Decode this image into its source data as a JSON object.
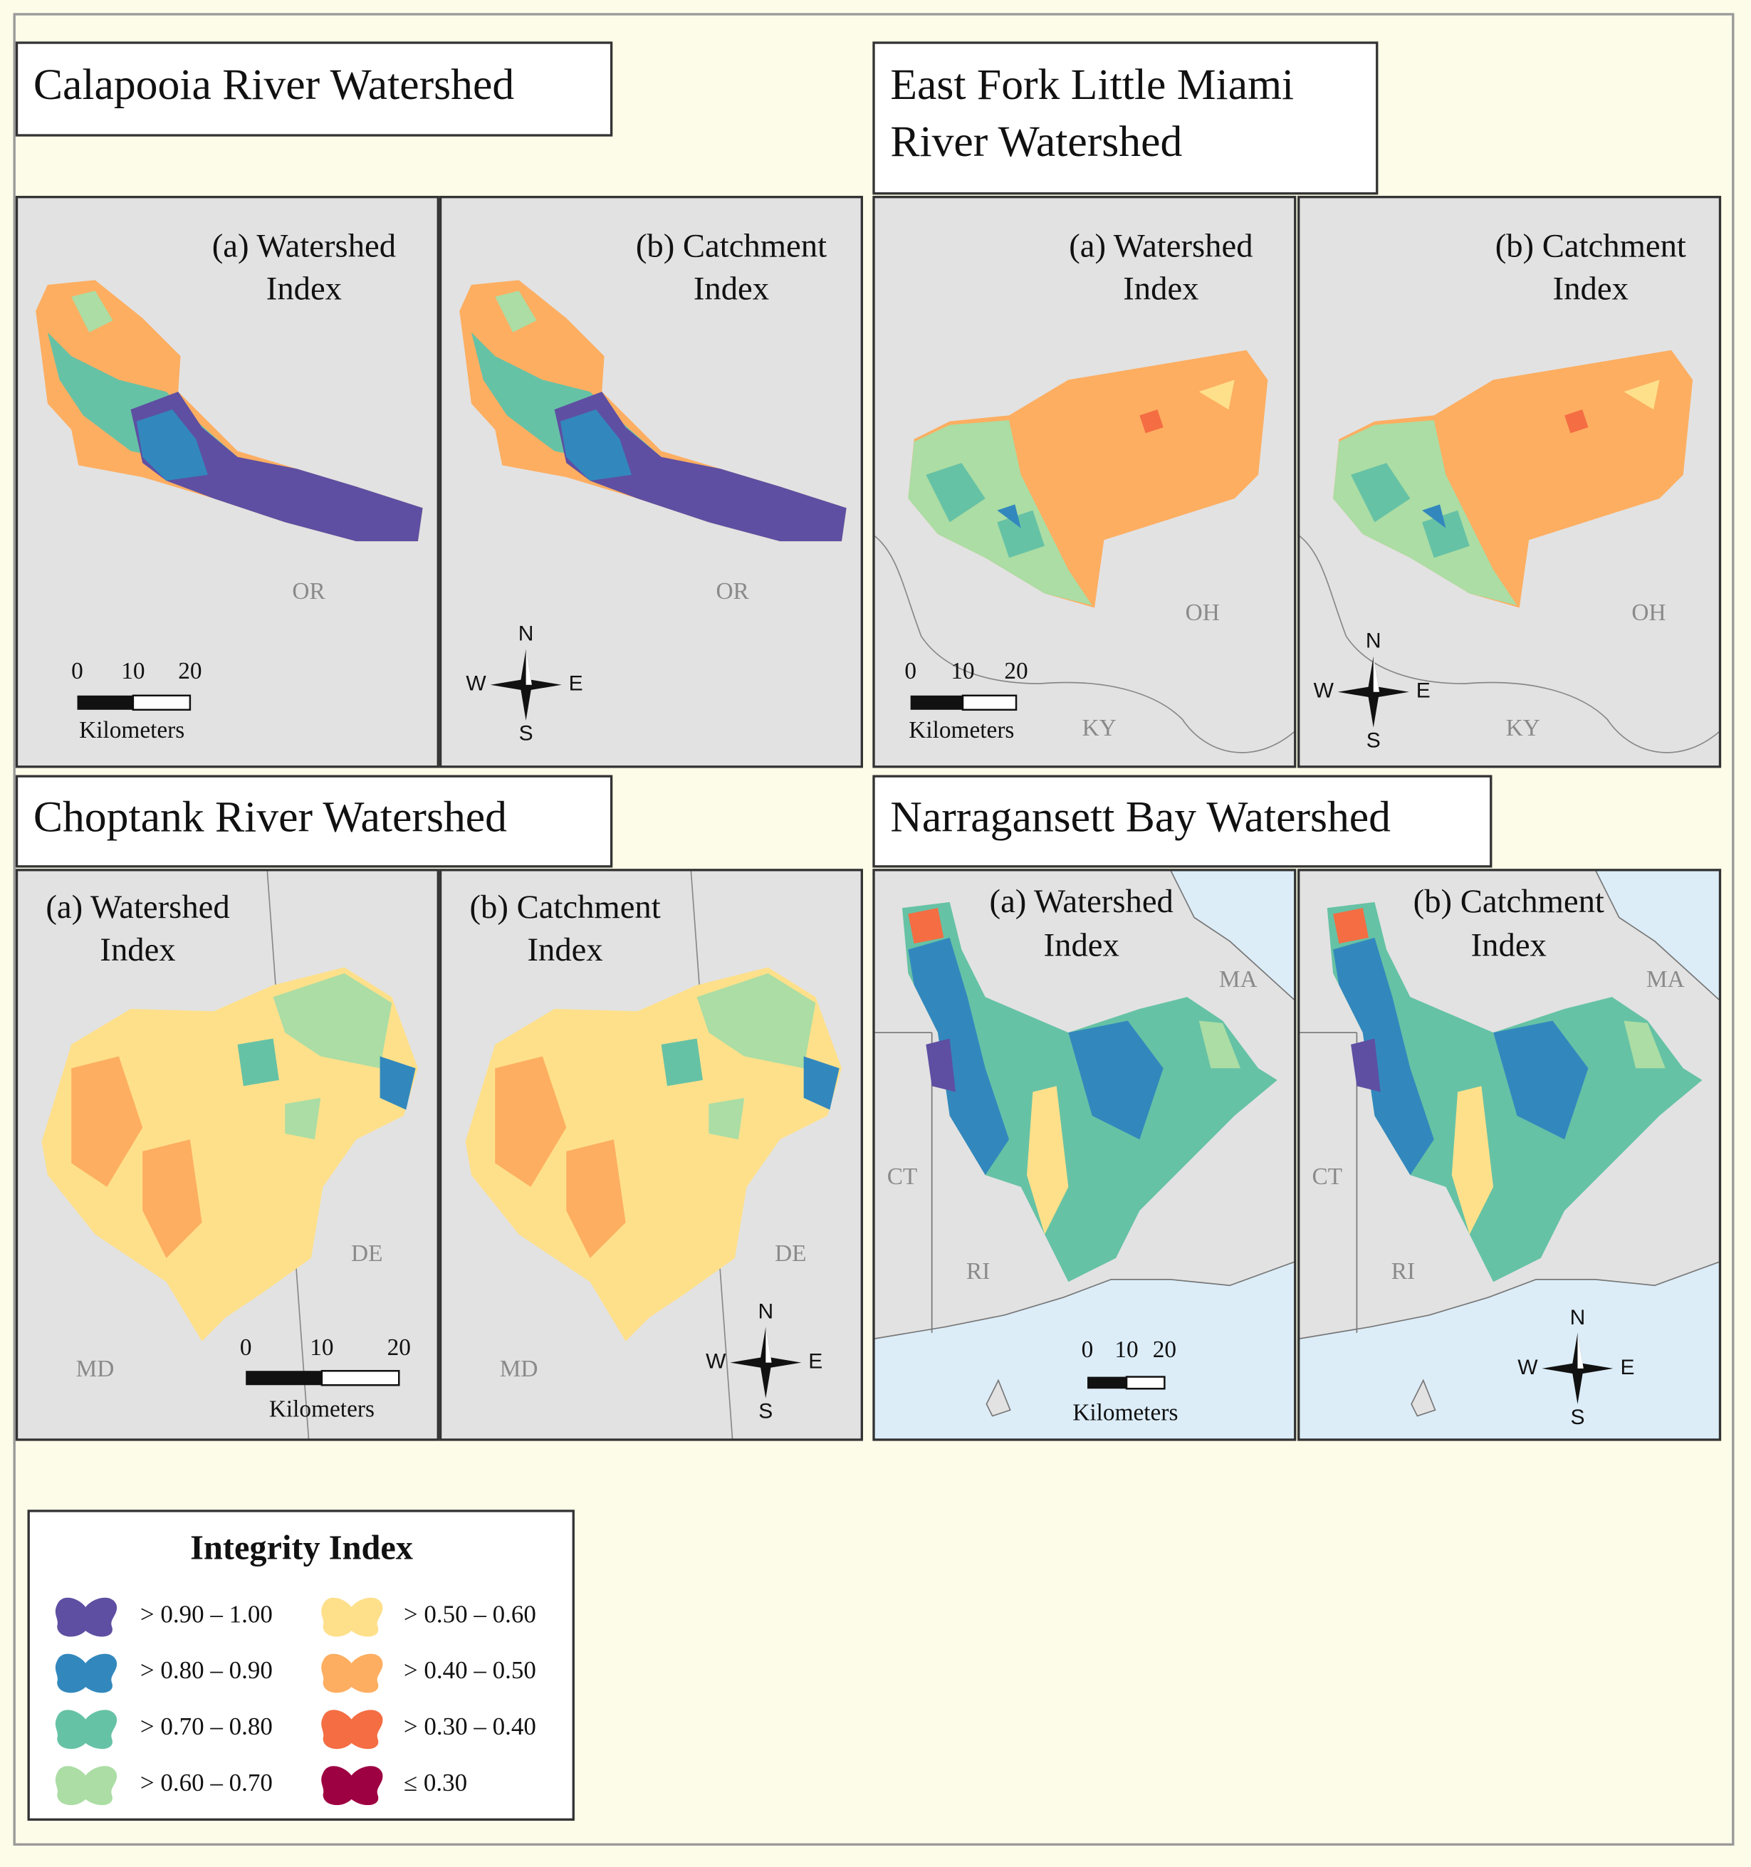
{
  "maps": [
    {
      "title": [
        "Calapooia River Watershed"
      ],
      "panels": [
        {
          "label": [
            "(a) Watershed",
            "Index"
          ],
          "states": [
            "OR"
          ]
        },
        {
          "label": [
            "(b) Catchment",
            "Index"
          ],
          "states": [
            "OR"
          ]
        }
      ],
      "scale_bar": {
        "ticks": [
          0,
          10,
          20
        ],
        "unit": "Kilometers"
      },
      "compass": {
        "n": "N",
        "e": "E",
        "s": "S",
        "w": "W"
      }
    },
    {
      "title": [
        "East Fork Little Miami",
        "River Watershed"
      ],
      "panels": [
        {
          "label": [
            "(a) Watershed",
            "Index"
          ],
          "states": [
            "OH",
            "KY"
          ]
        },
        {
          "label": [
            "(b) Catchment",
            "Index"
          ],
          "states": [
            "OH",
            "KY"
          ]
        }
      ],
      "scale_bar": {
        "ticks": [
          0,
          10,
          20
        ],
        "unit": "Kilometers"
      },
      "compass": {
        "n": "N",
        "e": "E",
        "s": "S",
        "w": "W"
      }
    },
    {
      "title": [
        "Choptank River Watershed"
      ],
      "panels": [
        {
          "label": [
            "(a) Watershed",
            "Index"
          ],
          "states": [
            "DE",
            "MD"
          ]
        },
        {
          "label": [
            "(b) Catchment",
            "Index"
          ],
          "states": [
            "DE",
            "MD"
          ]
        }
      ],
      "scale_bar": {
        "ticks": [
          0,
          10,
          20
        ],
        "unit": "Kilometers"
      },
      "compass": {
        "n": "N",
        "e": "E",
        "s": "S",
        "w": "W"
      }
    },
    {
      "title": [
        "Narragansett Bay Watershed"
      ],
      "panels": [
        {
          "label": [
            "(a) Watershed",
            "Index"
          ],
          "states": [
            "MA",
            "CT",
            "RI"
          ]
        },
        {
          "label": [
            "(b) Catchment",
            "Index"
          ],
          "states": [
            "MA",
            "CT",
            "RI"
          ]
        }
      ],
      "scale_bar": {
        "ticks": [
          0,
          10,
          20
        ],
        "unit": "Kilometers"
      },
      "compass": {
        "n": "N",
        "e": "E",
        "s": "S",
        "w": "W"
      }
    }
  ],
  "legend": {
    "title": "Integrity Index",
    "items": [
      {
        "label": "> 0.90 – 1.00",
        "color": "#5e4fa2"
      },
      {
        "label": "> 0.80 – 0.90",
        "color": "#3288bd"
      },
      {
        "label": "> 0.70 – 0.80",
        "color": "#66c2a5"
      },
      {
        "label": "> 0.60 – 0.70",
        "color": "#abdda4"
      },
      {
        "label": "> 0.50 – 0.60",
        "color": "#fee08b"
      },
      {
        "label": "> 0.40 – 0.50",
        "color": "#fdae61"
      },
      {
        "label": "> 0.30 – 0.40",
        "color": "#f46d43"
      },
      {
        "label": "≤ 0.30",
        "color": "#9e0142"
      }
    ]
  }
}
